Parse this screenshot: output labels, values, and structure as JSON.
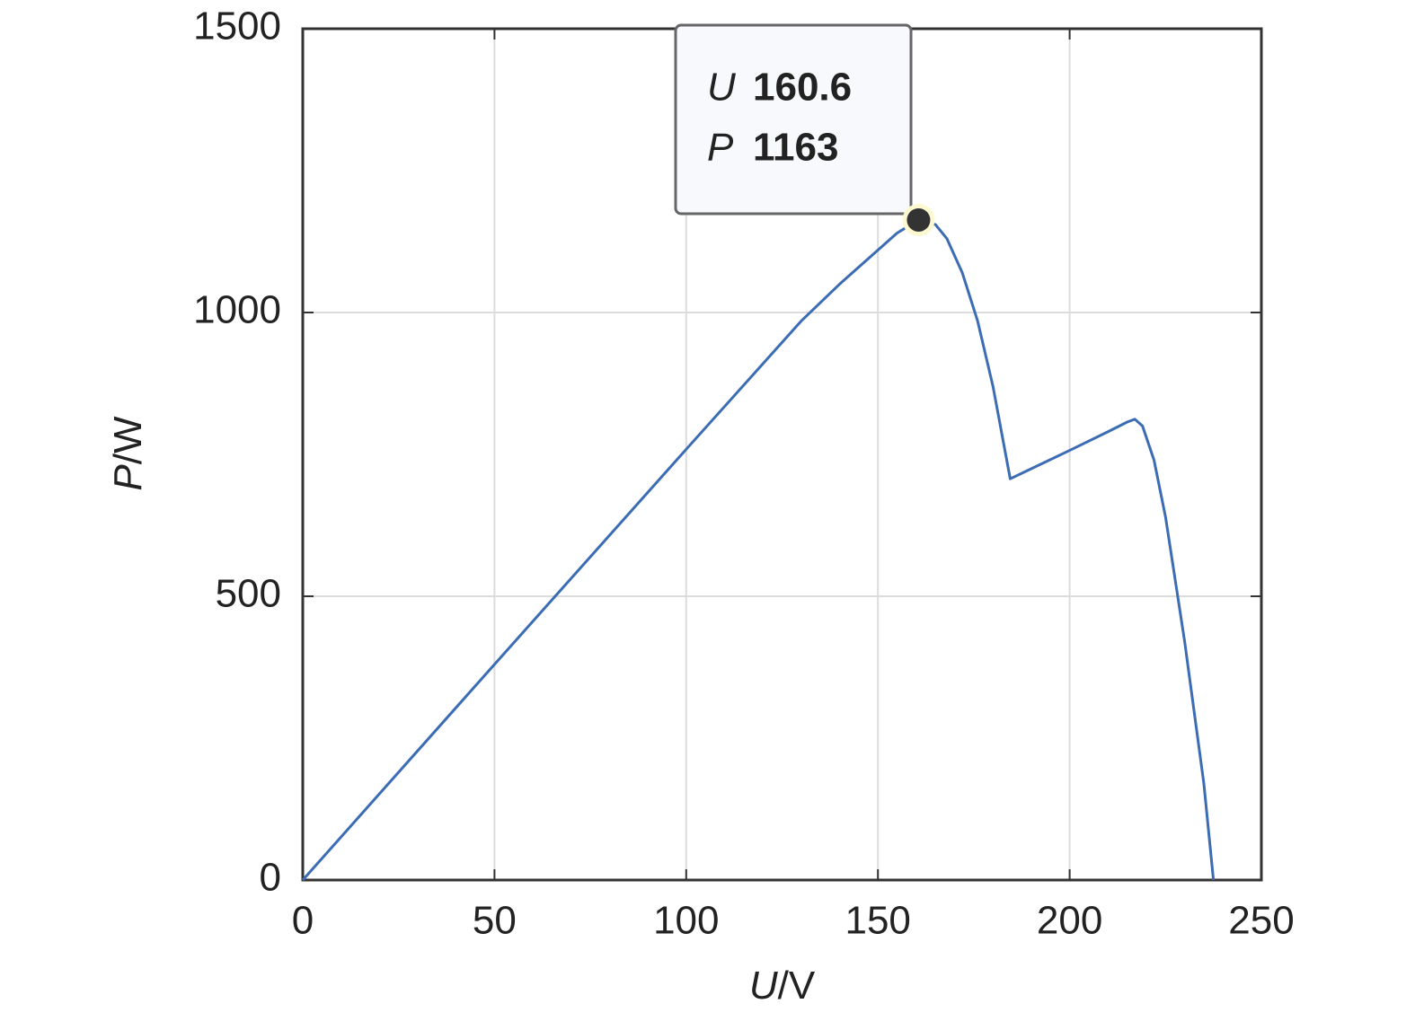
{
  "chart_data": {
    "type": "line",
    "xlabel": "U/V",
    "ylabel": "P/W",
    "x": [
      0,
      50,
      100,
      130,
      140,
      150,
      155,
      160.6,
      165,
      168,
      172,
      176,
      180,
      184.5,
      200,
      210,
      215,
      217,
      219,
      222,
      225,
      230,
      235,
      237.5
    ],
    "series": [
      {
        "color": "#3b6cb4",
        "values": [
          0,
          380,
          759,
          985,
          1050,
          1110,
          1140,
          1163,
          1155,
          1130,
          1070,
          985,
          870,
          707,
          757,
          790,
          807,
          812,
          800,
          740,
          640,
          420,
          170,
          0
        ]
      }
    ],
    "xlim": [
      0,
      250
    ],
    "xticks": [
      0,
      50,
      100,
      150,
      200,
      250
    ],
    "ylim": [
      0,
      1500
    ],
    "yticks": [
      0,
      500,
      1000,
      1500
    ],
    "grid": true,
    "datatip": {
      "x_name": "U",
      "x": 160.6,
      "y_name": "P",
      "y": 1163
    }
  }
}
